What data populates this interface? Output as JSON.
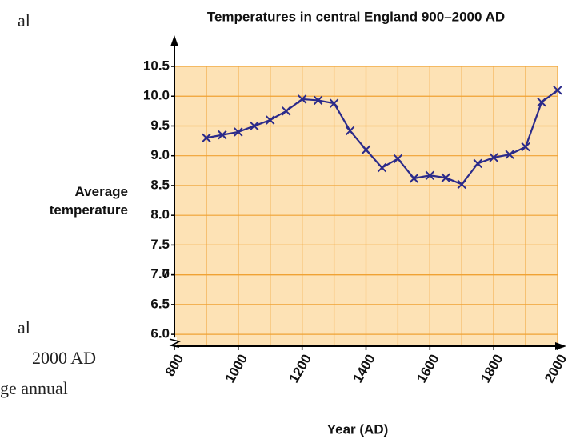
{
  "chart_data": {
    "type": "line",
    "title": "Temperatures in central England 900–2000 AD",
    "xlabel": "Year (AD)",
    "ylabel": "Average temperature",
    "x": [
      900,
      950,
      1000,
      1050,
      1100,
      1150,
      1200,
      1250,
      1300,
      1350,
      1400,
      1450,
      1500,
      1550,
      1600,
      1650,
      1700,
      1750,
      1800,
      1850,
      1900,
      1950,
      2000
    ],
    "series": [
      {
        "color": "#2b2a8a",
        "values": [
          9.3,
          9.35,
          9.4,
          9.5,
          9.6,
          9.75,
          9.95,
          9.93,
          9.88,
          9.42,
          9.1,
          8.8,
          8.95,
          8.62,
          8.67,
          8.63,
          8.52,
          8.87,
          8.97,
          9.02,
          9.15,
          9.9,
          10.1
        ]
      }
    ],
    "xlim": [
      800,
      2000
    ],
    "xticks": [
      800,
      1000,
      1200,
      1400,
      1600,
      1800,
      2000
    ],
    "xgrid": [
      900,
      1000,
      1100,
      1200,
      1300,
      1400,
      1500,
      1600,
      1700,
      1800,
      1900,
      2000
    ],
    "ylim": [
      5.8,
      10.5
    ],
    "yticks": [
      {
        "value": 6,
        "label": "6.0"
      },
      6.5,
      7,
      {
        "value": 7,
        "label": "7.0"
      },
      7.5,
      {
        "value": 8,
        "label": "8.0"
      },
      8.5,
      {
        "value": 9,
        "label": "9.0"
      },
      9.5,
      {
        "value": 10,
        "label": "10.0"
      },
      10.5
    ],
    "grid": true,
    "axis_break": true
  },
  "margin_text": [
    "al",
    "al",
    "2000 AD",
    "ge annual"
  ]
}
